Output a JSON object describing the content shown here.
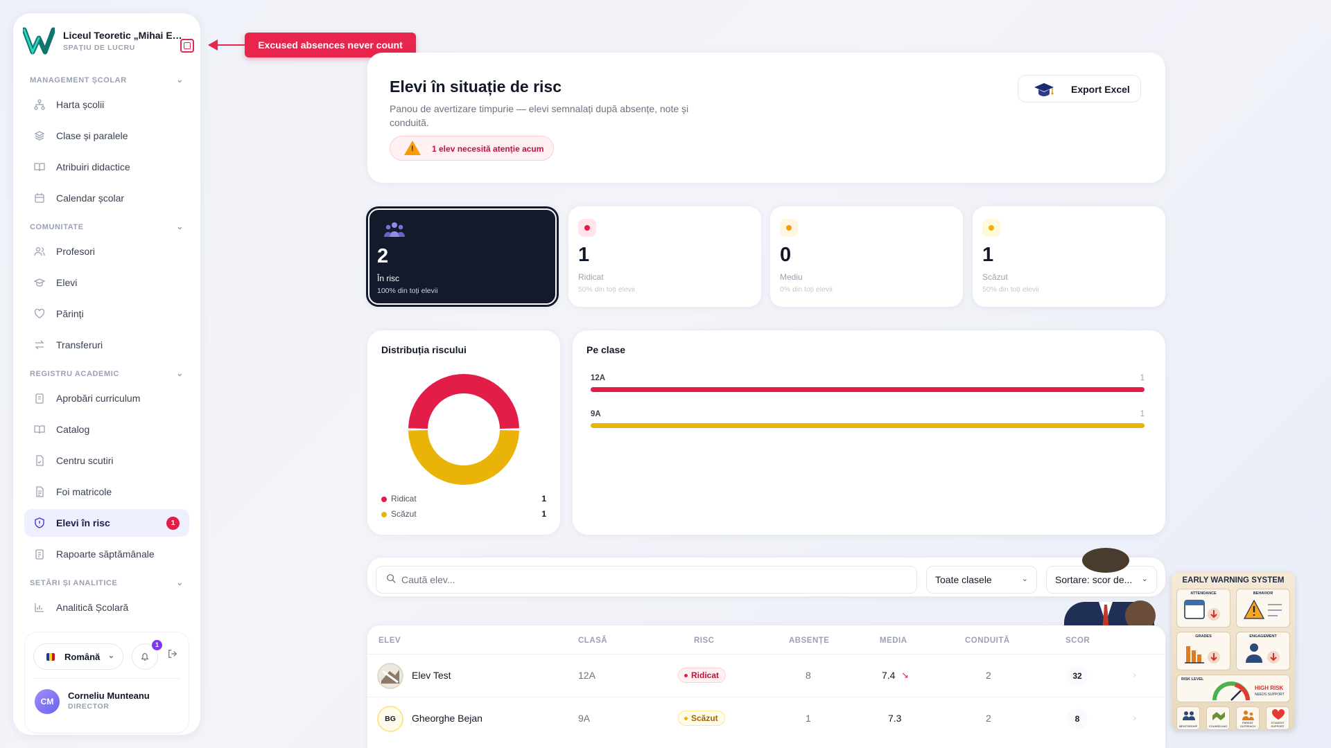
{
  "sidebar": {
    "school_name": "Liceul Teoretic „Mihai Emi...",
    "workspace_label": "SPAȚIU DE LUCRU",
    "sections": [
      {
        "title": "MANAGEMENT ȘCOLAR"
      },
      {
        "title": "COMUNITATE"
      },
      {
        "title": "REGISTRU ACADEMIC"
      },
      {
        "title": "SETĂRI ȘI ANALITICE"
      }
    ],
    "items": [
      {
        "label": "Harta școlii",
        "icon": "sitemap-icon"
      },
      {
        "label": "Clase și paralele",
        "icon": "layers-icon"
      },
      {
        "label": "Atribuiri didactice",
        "icon": "book-open-icon"
      },
      {
        "label": "Calendar școlar",
        "icon": "calendar-icon"
      },
      {
        "label": "Profesori",
        "icon": "users-icon"
      },
      {
        "label": "Elevi",
        "icon": "graduation-cap-icon"
      },
      {
        "label": "Părinți",
        "icon": "heart-icon"
      },
      {
        "label": "Transferuri",
        "icon": "transfer-arrows-icon"
      },
      {
        "label": "Aprobări curriculum",
        "icon": "clipboard-icon"
      },
      {
        "label": "Catalog",
        "icon": "book-open-icon"
      },
      {
        "label": "Centru scutiri",
        "icon": "document-check-icon"
      },
      {
        "label": "Foi matricole",
        "icon": "document-list-icon"
      },
      {
        "label": "Elevi în risc",
        "icon": "shield-icon",
        "badge": "1"
      },
      {
        "label": "Rapoarte săptămânale",
        "icon": "clipboard-list-icon"
      },
      {
        "label": "Analitică Școlară",
        "icon": "bar-chart-icon"
      }
    ],
    "language": "Română",
    "notifications_count": "1",
    "user": {
      "initials": "CM",
      "name": "Corneliu Munteanu",
      "role": "DIRECTOR"
    }
  },
  "callout": {
    "text": "Excused absences never count"
  },
  "header": {
    "title": "Elevi în situație de risc",
    "description": "Panou de avertizare timpurie — elevi semnalați după absențe, note și conduită.",
    "alert": "1 elev necesită atenție acum",
    "export_label": "Export Excel"
  },
  "stats": [
    {
      "value": "2",
      "label": "În risc",
      "sub": "100% din toți elevii"
    },
    {
      "value": "1",
      "label": "Ridicat",
      "sub": "50% din toți elevii",
      "color": "#e11d48"
    },
    {
      "value": "0",
      "label": "Mediu",
      "sub": "0% din toți elevii",
      "color": "#f59e0b"
    },
    {
      "value": "1",
      "label": "Scăzut",
      "sub": "50% din toți elevii",
      "color": "#eab308"
    }
  ],
  "distribution": {
    "title": "Distribuția riscului",
    "legend": [
      {
        "label": "Ridicat",
        "value": "1",
        "color": "#e11d48"
      },
      {
        "label": "Scăzut",
        "value": "1",
        "color": "#eab308"
      }
    ]
  },
  "by_class": {
    "title": "Pe clase",
    "rows": [
      {
        "label": "12A",
        "value": "1",
        "fraction": 1,
        "color": "#e11d48"
      },
      {
        "label": "9A",
        "value": "1",
        "fraction": 1,
        "color": "#eab308"
      }
    ]
  },
  "chart_data": [
    {
      "type": "pie",
      "title": "Distribuția riscului",
      "categories": [
        "Ridicat",
        "Scăzut"
      ],
      "values": [
        1,
        1
      ],
      "colors": [
        "#e11d48",
        "#eab308"
      ]
    },
    {
      "type": "bar",
      "title": "Pe clase",
      "categories": [
        "12A",
        "9A"
      ],
      "values": [
        1,
        1
      ],
      "colors": [
        "#e11d48",
        "#eab308"
      ]
    }
  ],
  "filters": {
    "search_placeholder": "Caută elev...",
    "class_select": "Toate clasele",
    "sort_select": "Sortare: scor de..."
  },
  "table": {
    "headers": [
      "ELEV",
      "CLASĂ",
      "RISC",
      "ABSENȚE",
      "MEDIA",
      "CONDUITĂ",
      "SCOR"
    ],
    "rows": [
      {
        "name": "Elev Test",
        "initials": "",
        "class": "12A",
        "risk": "Ridicat",
        "absences": "8",
        "average": "7.4",
        "trend": "↘",
        "conduct": "2",
        "score": "32"
      },
      {
        "name": "Gheorghe Bejan",
        "initials": "BG",
        "class": "9A",
        "risk": "Scăzut",
        "absences": "1",
        "average": "7.3",
        "trend": "",
        "conduct": "2",
        "score": "8"
      }
    ]
  },
  "illustration": {
    "title": "EARLY WARNING SYSTEM",
    "tiles": [
      "ATTENDANCE",
      "BEHAVIOR",
      "GRADES",
      "ENGAGEMENT",
      "RISK LEVEL"
    ],
    "risk_text": "HIGH RISK",
    "risk_sub": "NEEDS SUPPORT",
    "bottom": [
      "MENTORSHIP",
      "COUNSELING",
      "PARENT OUTREACH",
      "STUDENT SUPPORT"
    ]
  }
}
